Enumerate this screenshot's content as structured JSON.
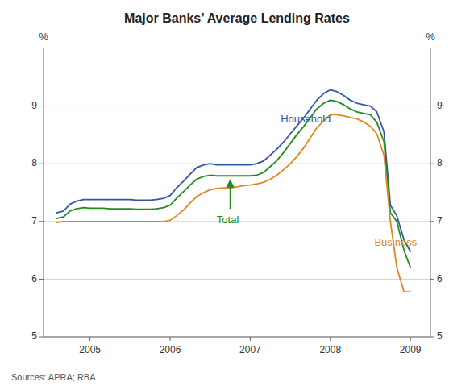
{
  "chart_data": {
    "type": "line",
    "title": "Major Banks’ Average Lending Rates",
    "y_label": "%",
    "y2_label": "%",
    "source": "Sources: APRA; RBA",
    "xlim": [
      2004.42,
      2009.25
    ],
    "xticks": [
      2005,
      2006,
      2007,
      2008,
      2009
    ],
    "ylim": [
      5,
      10
    ],
    "yticks": [
      5,
      6,
      7,
      8,
      9
    ],
    "y2lim": [
      5,
      10
    ],
    "y2ticks": [
      5,
      6,
      7,
      8,
      9
    ],
    "grid": true,
    "x": [
      2004.58,
      2004.67,
      2004.75,
      2004.83,
      2004.92,
      2005.0,
      2005.08,
      2005.17,
      2005.25,
      2005.33,
      2005.42,
      2005.5,
      2005.58,
      2005.67,
      2005.75,
      2005.83,
      2005.92,
      2006.0,
      2006.08,
      2006.17,
      2006.25,
      2006.33,
      2006.42,
      2006.5,
      2006.58,
      2006.67,
      2006.75,
      2006.83,
      2006.92,
      2007.0,
      2007.08,
      2007.17,
      2007.25,
      2007.33,
      2007.42,
      2007.5,
      2007.58,
      2007.67,
      2007.75,
      2007.83,
      2007.92,
      2008.0,
      2008.08,
      2008.17,
      2008.25,
      2008.33,
      2008.42,
      2008.5,
      2008.58,
      2008.67,
      2008.75,
      2008.83,
      2008.92,
      2009.0
    ],
    "series": [
      {
        "color": "#3355AA",
        "values": [
          7.15,
          7.18,
          7.3,
          7.35,
          7.38,
          7.38,
          7.38,
          7.38,
          7.38,
          7.38,
          7.38,
          7.38,
          7.37,
          7.37,
          7.37,
          7.38,
          7.4,
          7.45,
          7.58,
          7.7,
          7.82,
          7.93,
          7.98,
          8.0,
          7.98,
          7.98,
          7.98,
          7.98,
          7.98,
          7.98,
          8.0,
          8.05,
          8.15,
          8.25,
          8.38,
          8.52,
          8.65,
          8.8,
          8.95,
          9.1,
          9.22,
          9.28,
          9.25,
          9.18,
          9.1,
          9.05,
          9.02,
          9.0,
          8.9,
          8.55,
          7.28,
          7.1,
          6.68,
          6.48
        ]
      },
      {
        "color": "#228B22",
        "values": [
          7.05,
          7.08,
          7.18,
          7.22,
          7.24,
          7.23,
          7.23,
          7.23,
          7.22,
          7.22,
          7.22,
          7.22,
          7.21,
          7.21,
          7.21,
          7.22,
          7.24,
          7.28,
          7.4,
          7.52,
          7.63,
          7.73,
          7.78,
          7.8,
          7.79,
          7.79,
          7.79,
          7.79,
          7.79,
          7.79,
          7.8,
          7.85,
          7.95,
          8.05,
          8.2,
          8.35,
          8.5,
          8.65,
          8.8,
          8.95,
          9.05,
          9.1,
          9.08,
          9.02,
          8.95,
          8.9,
          8.87,
          8.85,
          8.72,
          8.38,
          7.15,
          7.0,
          6.5,
          6.2
        ]
      },
      {
        "color": "#E08820",
        "values": [
          6.98,
          7.0,
          7.0,
          7.0,
          7.0,
          7.0,
          7.0,
          7.0,
          7.0,
          7.0,
          7.0,
          7.0,
          7.0,
          7.0,
          7.0,
          7.0,
          7.0,
          7.02,
          7.1,
          7.2,
          7.32,
          7.43,
          7.5,
          7.55,
          7.57,
          7.58,
          7.58,
          7.6,
          7.62,
          7.63,
          7.65,
          7.68,
          7.73,
          7.8,
          7.9,
          8.0,
          8.12,
          8.28,
          8.45,
          8.62,
          8.75,
          8.85,
          8.85,
          8.83,
          8.8,
          8.78,
          8.72,
          8.65,
          8.52,
          8.15,
          7.0,
          6.2,
          5.78,
          5.78
        ]
      }
    ],
    "annotations": [
      {
        "text": "Total",
        "x": 2006.72,
        "y": 7.1,
        "color": "#228B22",
        "arrow": {
          "x": [
            2006.75,
            2006.75
          ],
          "y": [
            7.22,
            7.72
          ]
        }
      },
      {
        "text": "Household",
        "x": 2007.38,
        "y": 8.72,
        "color": "#3355AA"
      },
      {
        "text": "Business",
        "x": 2008.55,
        "y": 6.58,
        "color": "#E08820"
      }
    ]
  }
}
